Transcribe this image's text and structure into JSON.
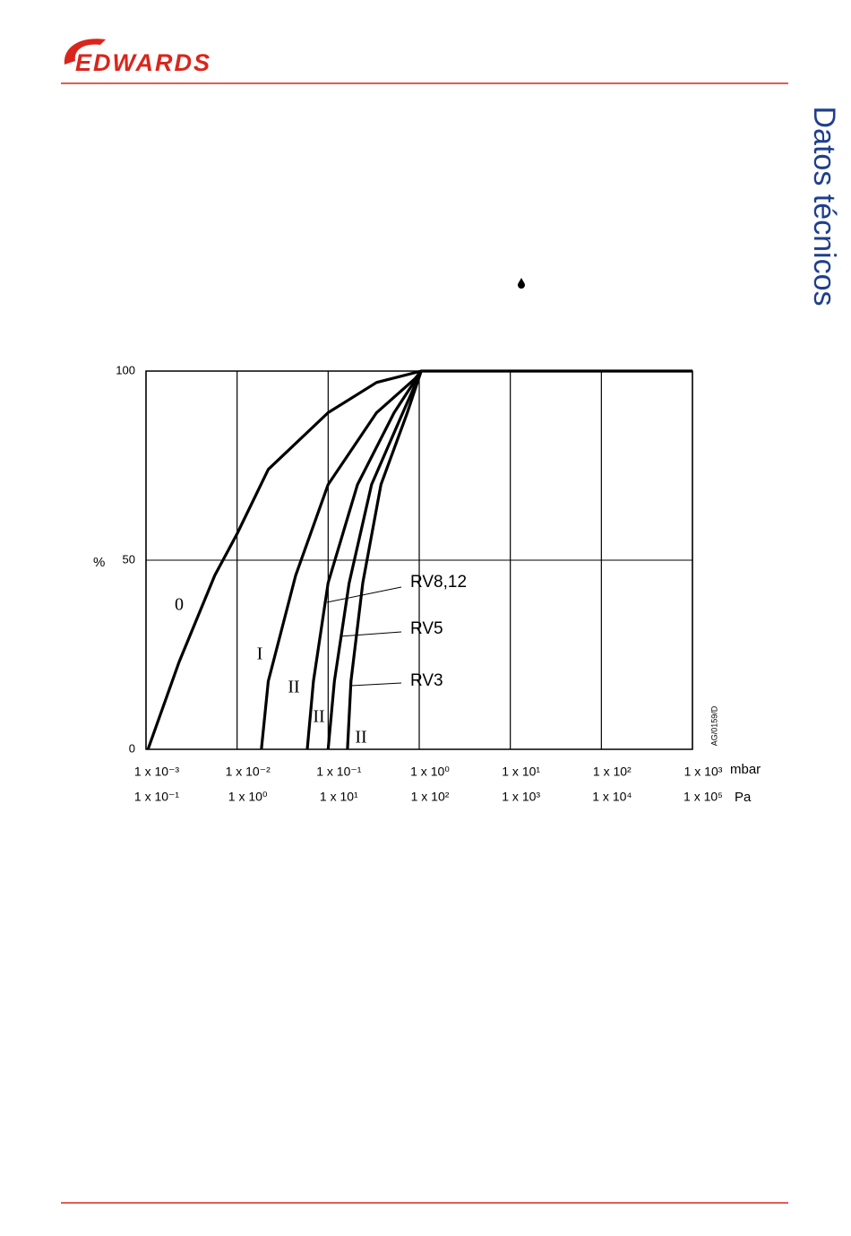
{
  "header": {
    "logo": "EDWARDS"
  },
  "side_title": "Datos técnicos",
  "chart_data": {
    "type": "line",
    "ylabel": "%",
    "x_unit": "mbar",
    "x2_unit": "Pa",
    "figure_code": "AG/0159/D",
    "x_scale": "log",
    "xlim": [
      0.001,
      1000
    ],
    "xticks": [
      {
        "value": 0.001,
        "label": "1 x 10⁻³"
      },
      {
        "value": 0.01,
        "label": "1 x 10⁻²"
      },
      {
        "value": 0.1,
        "label": "1 x 10⁻¹"
      },
      {
        "value": 1,
        "label": "1 x 10⁰"
      },
      {
        "value": 10,
        "label": "1 x 10¹"
      },
      {
        "value": 100,
        "label": "1 x 10²"
      },
      {
        "value": 1000,
        "label": "1 x 10³"
      }
    ],
    "x2lim": [
      0.1,
      100000
    ],
    "x2ticks": [
      {
        "value": 0.1,
        "label": "1 x 10⁻¹"
      },
      {
        "value": 1,
        "label": "1 x 10⁰"
      },
      {
        "value": 10,
        "label": "1 x 10¹"
      },
      {
        "value": 100,
        "label": "1 x 10²"
      },
      {
        "value": 1000,
        "label": "1 x 10³"
      },
      {
        "value": 10000,
        "label": "1 x 10⁴"
      },
      {
        "value": 100000,
        "label": "1 x 10⁵"
      }
    ],
    "ylim": [
      0,
      100
    ],
    "yticks": [
      0,
      50,
      100
    ],
    "grid": true,
    "color": "#000000",
    "series": [
      {
        "name": "0",
        "x": [
          0.00105,
          0.0023,
          0.0057,
          0.01,
          0.022,
          0.1,
          0.34,
          1.05,
          1000
        ],
        "values": [
          0,
          23,
          46,
          57,
          74,
          89,
          97,
          100,
          100
        ]
      },
      {
        "name": "I",
        "x": [
          0.0185,
          0.022,
          0.044,
          0.1,
          0.34,
          0.9,
          1.05
        ],
        "values": [
          0,
          18,
          46,
          70,
          89,
          98,
          100
        ]
      },
      {
        "name": "II",
        "x": [
          0.059,
          0.069,
          0.1,
          0.21,
          0.53,
          1.05
        ],
        "values": [
          0,
          18,
          44,
          70,
          89,
          100
        ]
      },
      {
        "name": "II",
        "x": [
          0.1,
          0.117,
          0.17,
          0.3,
          0.66,
          1.05
        ],
        "values": [
          0,
          18,
          44,
          70,
          89,
          100
        ]
      },
      {
        "name": "II",
        "x": [
          0.163,
          0.178,
          0.24,
          0.38,
          0.74,
          1.05
        ],
        "values": [
          0,
          18,
          44,
          70,
          89,
          100
        ]
      }
    ],
    "annotations": [
      "RV8,12",
      "RV5",
      "RV3"
    ]
  }
}
